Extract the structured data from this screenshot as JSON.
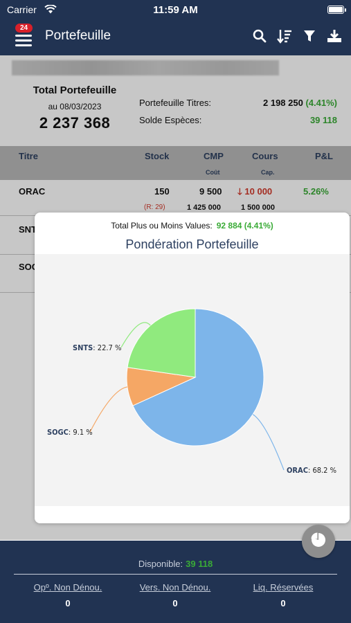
{
  "status": {
    "carrier": "Carrier",
    "time": "11:59 AM"
  },
  "nav": {
    "badge": "24",
    "title": "Portefeuille"
  },
  "summary": {
    "title": "Total Portefeuille",
    "date": "au 08/03/2023",
    "total": "2 237 368",
    "titres_label": "Portefeuille Titres:",
    "titres_value": "2 198 250",
    "titres_pct": "(4.41%)",
    "especes_label": "Solde Espèces:",
    "especes_value": "39 118"
  },
  "table": {
    "headers": {
      "titre": "Titre",
      "stock": "Stock",
      "cmp": "CMP",
      "cours": "Cours",
      "pl": "P&L",
      "cout": "Coût",
      "cap": "Cap."
    },
    "rows": [
      {
        "titre": "ORAC",
        "stock": "150",
        "cmp": "9 500",
        "cours": "10 000",
        "pl": "5.26%",
        "reserve": "(R: 29)",
        "cout": "1 425 000",
        "cap": "1 500 000"
      },
      {
        "titre": "SNT"
      },
      {
        "titre": "SOG"
      }
    ]
  },
  "popup": {
    "pv_label": "Total Plus ou Moins Values:",
    "pv_value": "92 884",
    "pv_pct": "(4.41%)",
    "chart_title": "Pondération Portefeuille"
  },
  "chart_data": {
    "type": "pie",
    "title": "Pondération Portefeuille",
    "slices": [
      {
        "name": "ORAC",
        "value": 68.2,
        "label": "ORAC: 68.2 %",
        "color": "#7db5ea"
      },
      {
        "name": "SOGC",
        "value": 9.1,
        "label": "SOGC: 9.1 %",
        "color": "#f5a765"
      },
      {
        "name": "SNTS",
        "value": 22.7,
        "label": "SNTS: 22.7 %",
        "color": "#90ea7e"
      }
    ]
  },
  "bottom": {
    "dispo_label": "Disponible:",
    "dispo_value": "39 118",
    "links": [
      {
        "label": "Opº. Non Dénou.",
        "value": "0"
      },
      {
        "label": "Vers. Non Dénou.",
        "value": "0"
      },
      {
        "label": "Liq. Réservées",
        "value": "0"
      }
    ]
  },
  "icons": [
    "menu-icon",
    "search-icon",
    "sort-icon",
    "filter-icon",
    "download-icon",
    "pie-chart-icon"
  ],
  "colors": {
    "navy": "#213352",
    "green": "#3aab37",
    "red": "#d23a2c"
  }
}
